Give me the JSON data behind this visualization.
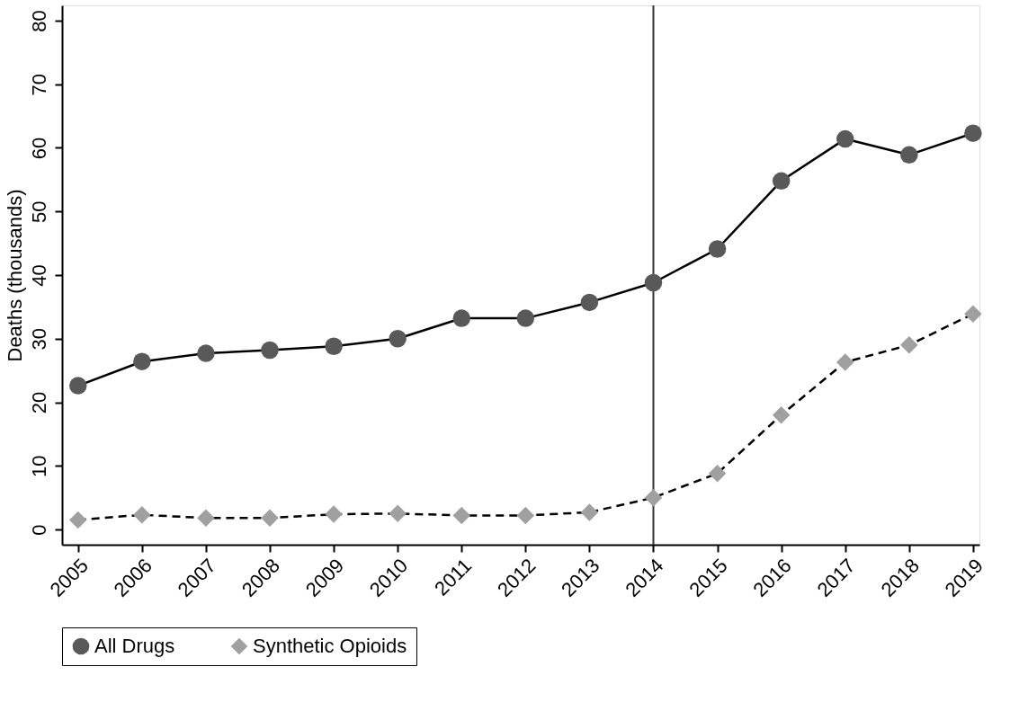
{
  "chart_data": {
    "type": "line",
    "ylabel": "Deaths (thousands)",
    "x": [
      2005,
      2006,
      2007,
      2008,
      2009,
      2010,
      2011,
      2012,
      2013,
      2014,
      2015,
      2016,
      2017,
      2018,
      2019
    ],
    "series": [
      {
        "name": "All Drugs",
        "color": "#595959",
        "marker": "circle",
        "line_style": "solid",
        "values": [
          22.6,
          26.4,
          27.7,
          28.2,
          28.8,
          30.0,
          33.2,
          33.2,
          35.7,
          38.8,
          44.1,
          54.8,
          61.4,
          58.9,
          62.3
        ]
      },
      {
        "name": "Synthetic Opioids",
        "color": "#a0a0a0",
        "marker": "diamond",
        "line_style": "dashed",
        "values": [
          1.5,
          2.3,
          1.8,
          1.8,
          2.4,
          2.5,
          2.2,
          2.2,
          2.7,
          5.0,
          8.8,
          18.0,
          26.3,
          29.0,
          33.9
        ]
      }
    ],
    "xlim": [
      2004.75,
      2019.1
    ],
    "xticks": [
      2005,
      2006,
      2007,
      2008,
      2009,
      2010,
      2011,
      2012,
      2013,
      2014,
      2015,
      2016,
      2017,
      2018,
      2019
    ],
    "ylim": [
      -2.4,
      82.4
    ],
    "yticks": [
      0,
      10,
      20,
      30,
      40,
      50,
      60,
      70,
      80
    ],
    "ref_lines": [
      {
        "axis": "x",
        "value": 2014,
        "color": "#333333"
      }
    ],
    "grid": false,
    "legend": "bottom"
  }
}
